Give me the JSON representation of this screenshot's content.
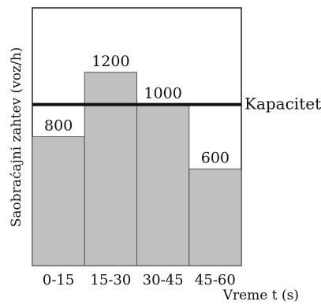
{
  "chart_data": {
    "type": "bar",
    "categories": [
      "0-15",
      "15-30",
      "30-45",
      "45-60"
    ],
    "values": [
      800,
      1200,
      1000,
      600
    ],
    "value_labels": [
      "800",
      "1200",
      "1000",
      "600"
    ],
    "xlabel": "Vreme t (s)",
    "ylabel": "Saobraćajni zahtev (voz/h)",
    "ylim": [
      0,
      1600
    ],
    "capacity": {
      "label": "Kapacitet",
      "value": 1000
    },
    "grid": false,
    "colors": {
      "bar_fill": "#c0c0c0",
      "bar_stroke": "#555555",
      "capacity_line": "#111111",
      "frame": "#222222"
    }
  }
}
